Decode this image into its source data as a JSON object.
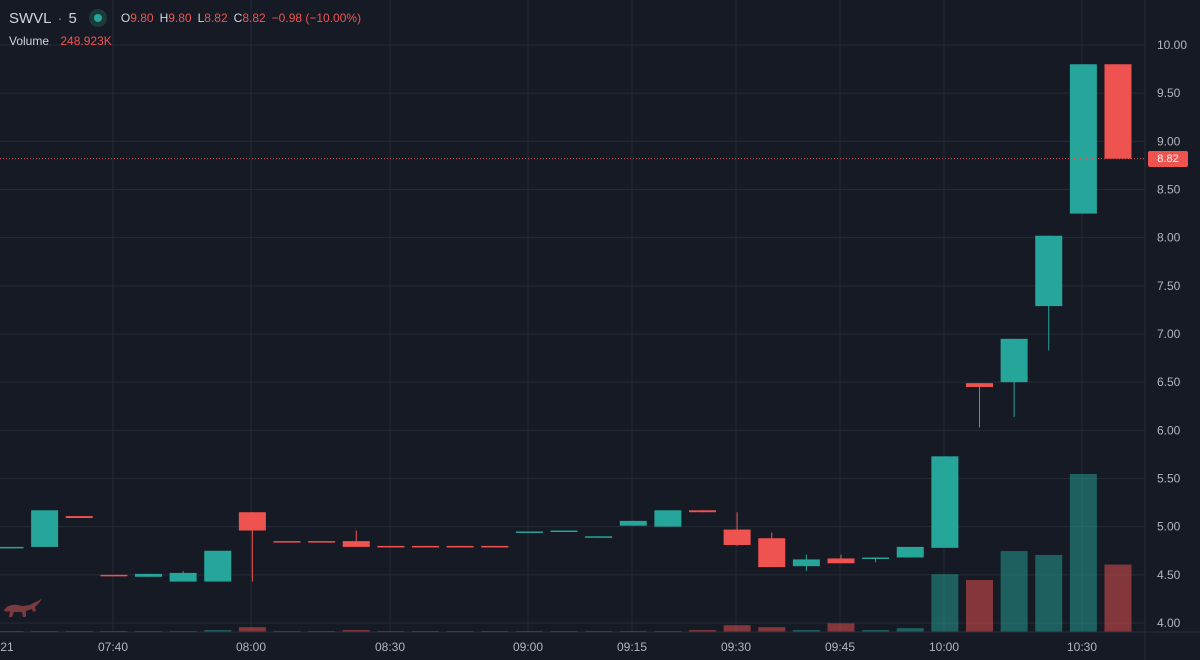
{
  "legend": {
    "symbol": "SWVL",
    "separator": "·",
    "interval": "5",
    "open_label": "O",
    "open": "9.80",
    "high_label": "H",
    "high": "9.80",
    "low_label": "L",
    "low": "8.82",
    "close_label": "C",
    "close": "8.82",
    "change": "−0.98 (−10.00%)"
  },
  "volume_legend": {
    "label": "Volume",
    "value": "248.923K"
  },
  "last_price": "8.82",
  "colors": {
    "up": "#26a69a",
    "down": "#ef5350",
    "background": "#161a25",
    "grid": "#252a36"
  },
  "chart_data": {
    "type": "candlestick",
    "y_axis": {
      "ticks": [
        "4.00",
        "4.50",
        "5.00",
        "5.50",
        "6.00",
        "6.50",
        "7.00",
        "7.50",
        "8.00",
        "8.50",
        "9.00",
        "9.50",
        "10.00"
      ],
      "range": [
        3.92,
        10.22
      ]
    },
    "x_axis": {
      "ticks": [
        "21",
        "07:40",
        "08:00",
        "08:30",
        "09:00",
        "09:15",
        "09:30",
        "09:45",
        "10:00",
        "10:30"
      ]
    },
    "candles": [
      {
        "o": 4.79,
        "h": 4.79,
        "l": 4.79,
        "c": 4.79,
        "vol": 0.5
      },
      {
        "o": 4.79,
        "h": 5.17,
        "l": 4.79,
        "c": 5.17,
        "vol": 0.5
      },
      {
        "o": 5.11,
        "h": 5.11,
        "l": 5.09,
        "c": 5.09,
        "vol": 0.5
      },
      {
        "o": 4.5,
        "h": 4.5,
        "l": 4.49,
        "c": 4.49,
        "vol": 0.5
      },
      {
        "o": 4.48,
        "h": 4.51,
        "l": 4.48,
        "c": 4.51,
        "vol": 0.5
      },
      {
        "o": 4.43,
        "h": 4.54,
        "l": 4.43,
        "c": 4.52,
        "vol": 0.5
      },
      {
        "o": 4.43,
        "h": 4.75,
        "l": 4.43,
        "c": 4.75,
        "vol": 1.0
      },
      {
        "o": 5.15,
        "h": 5.15,
        "l": 4.43,
        "c": 4.96,
        "vol": 2.5
      },
      {
        "o": 4.85,
        "h": 4.85,
        "l": 4.84,
        "c": 4.84,
        "vol": 0.5
      },
      {
        "o": 4.85,
        "h": 4.85,
        "l": 4.84,
        "c": 4.84,
        "vol": 0.5
      },
      {
        "o": 4.85,
        "h": 4.96,
        "l": 4.79,
        "c": 4.79,
        "vol": 1.0
      },
      {
        "o": 4.8,
        "h": 4.8,
        "l": 4.79,
        "c": 4.79,
        "vol": 0.5
      },
      {
        "o": 4.8,
        "h": 4.8,
        "l": 4.79,
        "c": 4.79,
        "vol": 0.5
      },
      {
        "o": 4.8,
        "h": 4.8,
        "l": 4.79,
        "c": 4.79,
        "vol": 0.5
      },
      {
        "o": 4.8,
        "h": 4.8,
        "l": 4.79,
        "c": 4.79,
        "vol": 0.5
      },
      {
        "o": 4.94,
        "h": 4.95,
        "l": 4.94,
        "c": 4.95,
        "vol": 0.5
      },
      {
        "o": 4.95,
        "h": 4.96,
        "l": 4.95,
        "c": 4.96,
        "vol": 0.5
      },
      {
        "o": 4.89,
        "h": 4.9,
        "l": 4.89,
        "c": 4.9,
        "vol": 0.5
      },
      {
        "o": 5.01,
        "h": 5.06,
        "l": 5.01,
        "c": 5.06,
        "vol": 0.5
      },
      {
        "o": 5.0,
        "h": 5.17,
        "l": 5.0,
        "c": 5.17,
        "vol": 0.5
      },
      {
        "o": 5.17,
        "h": 5.17,
        "l": 5.15,
        "c": 5.15,
        "vol": 1.0
      },
      {
        "o": 4.97,
        "h": 5.15,
        "l": 4.8,
        "c": 4.81,
        "vol": 3.5
      },
      {
        "o": 4.88,
        "h": 4.94,
        "l": 4.58,
        "c": 4.58,
        "vol": 2.5
      },
      {
        "o": 4.59,
        "h": 4.71,
        "l": 4.54,
        "c": 4.66,
        "vol": 1.0
      },
      {
        "o": 4.67,
        "h": 4.71,
        "l": 4.62,
        "c": 4.62,
        "vol": 4.5
      },
      {
        "o": 4.67,
        "h": 4.68,
        "l": 4.63,
        "c": 4.68,
        "vol": 1.0
      },
      {
        "o": 4.68,
        "h": 4.79,
        "l": 4.68,
        "c": 4.79,
        "vol": 2.0
      },
      {
        "o": 4.78,
        "h": 5.73,
        "l": 4.78,
        "c": 5.73,
        "vol": 30
      },
      {
        "o": 6.49,
        "h": 6.49,
        "l": 6.03,
        "c": 6.45,
        "vol": 27
      },
      {
        "o": 6.5,
        "h": 6.95,
        "l": 6.14,
        "c": 6.95,
        "vol": 42
      },
      {
        "o": 7.29,
        "h": 8.02,
        "l": 6.83,
        "c": 8.02,
        "vol": 40
      },
      {
        "o": 8.25,
        "h": 9.8,
        "l": 8.25,
        "c": 9.8,
        "vol": 82
      },
      {
        "o": 9.8,
        "h": 9.8,
        "l": 8.82,
        "c": 8.82,
        "vol": 35
      }
    ]
  }
}
